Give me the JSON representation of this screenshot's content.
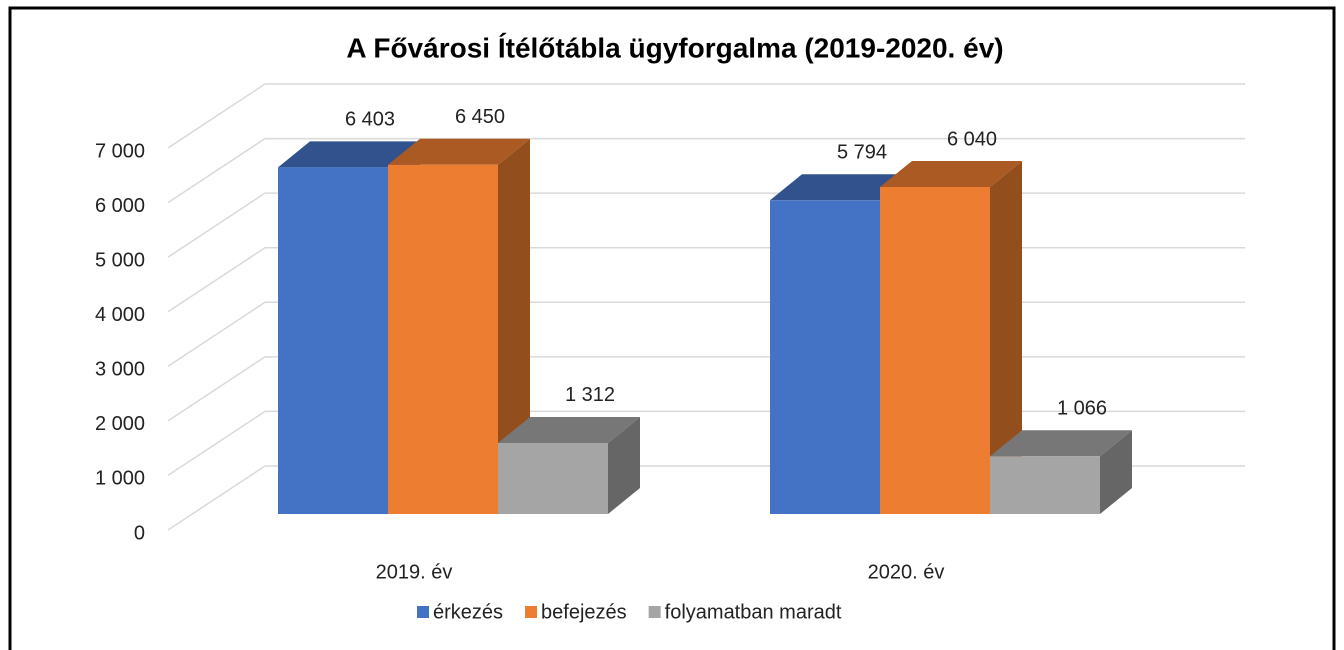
{
  "chart_data": {
    "type": "bar3d",
    "title": "A Fővárosi Ítélőtábla ügyforgalma (2019-2020. év)",
    "categories": [
      "2019. év",
      "2020. év"
    ],
    "series": [
      {
        "name": "érkezés",
        "color": "#4472c4",
        "values": [
          6403,
          5794
        ],
        "value_labels": [
          "6 403",
          "5 794"
        ]
      },
      {
        "name": "befejezés",
        "color": "#ed7d31",
        "values": [
          6450,
          6040
        ],
        "value_labels": [
          "6 450",
          "6 040"
        ]
      },
      {
        "name": "folyamatban maradt",
        "color": "#a5a5a5",
        "values": [
          1312,
          1066
        ],
        "value_labels": [
          "1 312",
          "1 066"
        ]
      }
    ],
    "ylim": [
      0,
      7000
    ],
    "yticks": [
      0,
      {
        "value": 1000,
        "label": "1 000"
      },
      {
        "value": 2000,
        "label": "2 000"
      },
      {
        "value": 3000,
        "label": "3 000"
      },
      {
        "value": 4000,
        "label": "4 000"
      },
      {
        "value": 5000,
        "label": "5 000"
      },
      {
        "value": 6000,
        "label": "6 000"
      },
      {
        "value": 7000,
        "label": "7 000"
      }
    ],
    "grid": true,
    "legend": "bottom"
  }
}
